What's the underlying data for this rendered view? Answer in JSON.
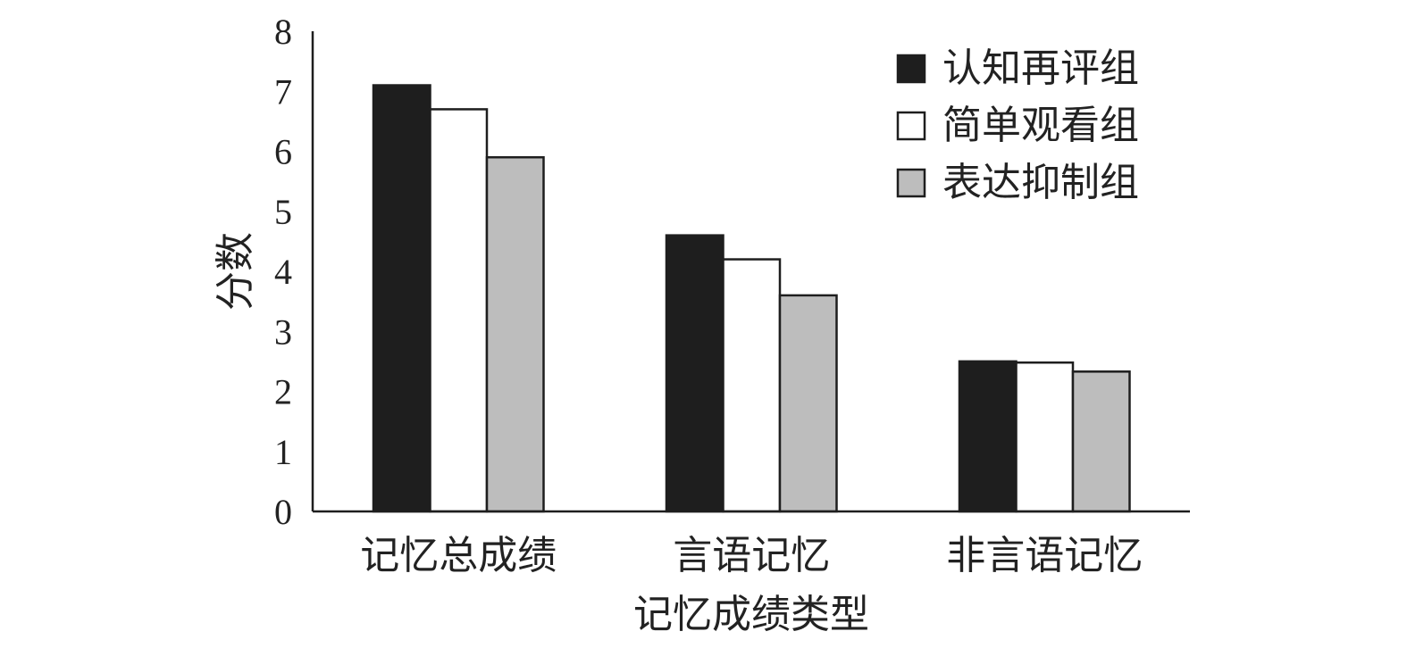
{
  "chart_data": {
    "type": "bar",
    "title": "",
    "xlabel": "记忆成绩类型",
    "ylabel": "分数",
    "ylim": [
      0,
      8
    ],
    "yticks": [
      0,
      1,
      2,
      3,
      4,
      5,
      6,
      7,
      8
    ],
    "categories": [
      "记忆总成绩",
      "言语记忆",
      "非言语记忆"
    ],
    "series": [
      {
        "name": "认知再评组",
        "color": "#1e1e1e",
        "values": [
          7.1,
          4.6,
          2.5
        ]
      },
      {
        "name": "简单观看组",
        "color": "#ffffff",
        "values": [
          6.7,
          4.2,
          2.48
        ]
      },
      {
        "name": "表达抑制组",
        "color": "#bdbdbd",
        "values": [
          5.9,
          3.6,
          2.33
        ]
      }
    ],
    "grid": false,
    "legend_position": "top-right"
  }
}
